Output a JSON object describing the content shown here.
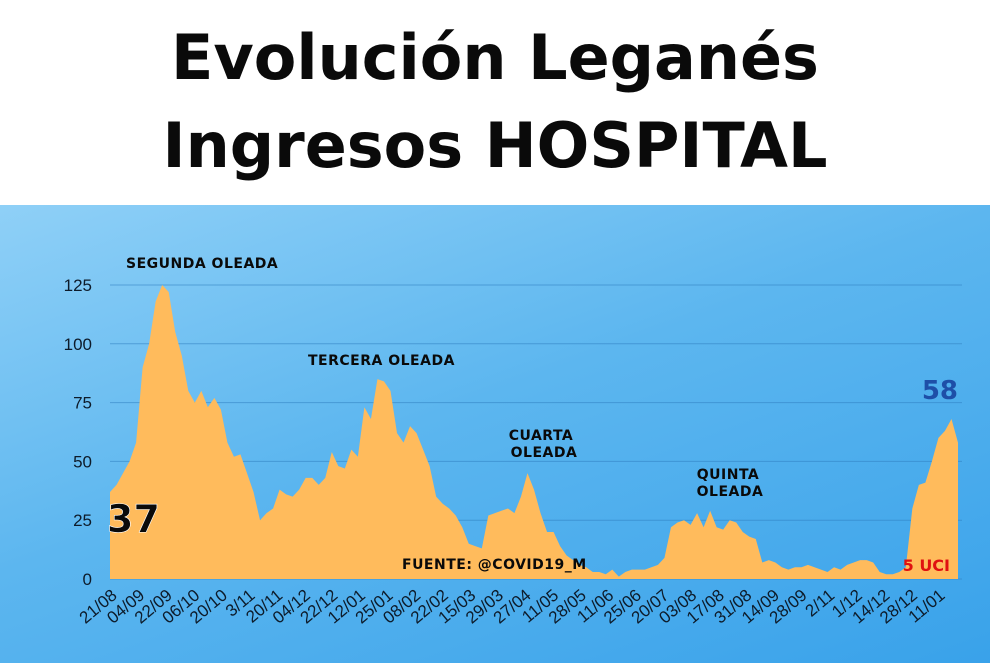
{
  "title": {
    "line1": "Evolución Leganés",
    "line2": "Ingresos HOSPITAL"
  },
  "colors": {
    "area": "#ffbb5c",
    "background_top": "#8fd0f7",
    "background_bottom": "#39a2ea",
    "grid": "#2f7fc0",
    "annotation_text": "#0a0a0a",
    "latest_value": "#1e4fa8",
    "uci": "#e01010"
  },
  "chart_data": {
    "type": "area",
    "title": "Evolución Leganés Ingresos HOSPITAL",
    "xlabel": "",
    "ylabel": "",
    "ylim": [
      0,
      125
    ],
    "yticks": [
      0,
      25,
      50,
      75,
      100,
      125
    ],
    "grid": true,
    "x_tick_labels": [
      "21/08",
      "04/09",
      "22/09",
      "06/10",
      "20/10",
      "3/11",
      "20/11",
      "04/12",
      "22/12",
      "12/01",
      "25/01",
      "08/02",
      "22/02",
      "15/03",
      "29/03",
      "27/04",
      "11/05",
      "28/05",
      "11/06",
      "25/06",
      "20/07",
      "03/08",
      "17/08",
      "31/08",
      "14/09",
      "28/09",
      "2/11",
      "1/12",
      "14/12",
      "28/12",
      "11/01"
    ],
    "values": [
      37,
      40,
      45,
      50,
      58,
      90,
      100,
      118,
      125,
      122,
      105,
      95,
      80,
      75,
      80,
      73,
      77,
      72,
      58,
      52,
      53,
      45,
      37,
      25,
      28,
      30,
      38,
      36,
      35,
      38,
      43,
      43,
      40,
      43,
      54,
      48,
      47,
      55,
      52,
      73,
      68,
      85,
      84,
      80,
      62,
      58,
      65,
      62,
      55,
      48,
      35,
      32,
      30,
      27,
      22,
      15,
      14,
      13,
      27,
      28,
      29,
      30,
      28,
      35,
      45,
      38,
      28,
      20,
      20,
      14,
      10,
      8,
      6,
      5,
      3,
      3,
      2,
      4,
      1,
      3,
      4,
      4,
      4,
      5,
      6,
      9,
      22,
      24,
      25,
      23,
      28,
      22,
      29,
      22,
      21,
      25,
      24,
      20,
      18,
      17,
      7,
      8,
      7,
      5,
      4,
      5,
      5,
      6,
      5,
      4,
      3,
      5,
      4,
      6,
      7,
      8,
      8,
      7,
      3,
      2,
      2,
      3,
      5,
      30,
      40,
      41,
      50,
      60,
      63,
      68,
      58
    ],
    "annotations": [
      {
        "text": "SEGUNDA OLEADA"
      },
      {
        "text": "TERCERA OLEADA"
      },
      {
        "text": "CUARTA OLEADA"
      },
      {
        "text": "QUINTA OLEADA"
      },
      {
        "text": "FUENTE: @COVID19_M"
      }
    ],
    "first_value_label": "37",
    "last_value_label": "58",
    "uci_label": "5 UCI"
  }
}
